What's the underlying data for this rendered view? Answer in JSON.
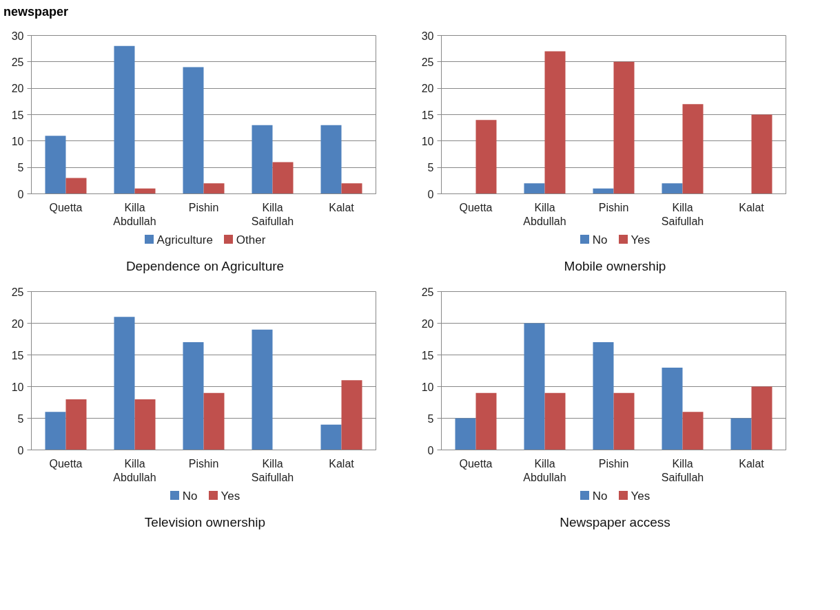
{
  "chart_data": [
    {
      "type": "bar",
      "title": "Dependence on Agriculture",
      "annotations": [
        "newspaper"
      ],
      "categories": [
        "Quetta",
        "Killa Abdullah",
        "Pishin",
        "Killa Saifullah",
        "Kalat"
      ],
      "series": [
        {
          "name": "Agriculture",
          "color": "#4f81bd",
          "values": [
            11,
            28,
            24,
            13,
            13
          ]
        },
        {
          "name": "Other",
          "color": "#c0504d",
          "values": [
            3,
            1,
            2,
            6,
            2
          ]
        }
      ],
      "ylim": [
        0,
        30
      ],
      "yticks": [
        0,
        5,
        10,
        15,
        20,
        25,
        30
      ],
      "grid": "y",
      "legend": "bottom"
    },
    {
      "type": "bar",
      "title": "Mobile ownership",
      "categories": [
        "Quetta",
        "Killa Abdullah",
        "Pishin",
        "Killa Saifullah",
        "Kalat"
      ],
      "series": [
        {
          "name": "No",
          "color": "#4f81bd",
          "values": [
            0,
            2,
            1,
            2,
            0
          ]
        },
        {
          "name": "Yes",
          "color": "#c0504d",
          "values": [
            14,
            27,
            25,
            17,
            15
          ]
        }
      ],
      "ylim": [
        0,
        30
      ],
      "yticks": [
        0,
        5,
        10,
        15,
        20,
        25,
        30
      ],
      "grid": "y",
      "legend": "bottom"
    },
    {
      "type": "bar",
      "title": "Television ownership",
      "categories": [
        "Quetta",
        "Killa Abdullah",
        "Pishin",
        "Killa Saifullah",
        "Kalat"
      ],
      "series": [
        {
          "name": "No",
          "color": "#4f81bd",
          "values": [
            6,
            21,
            17,
            19,
            4
          ]
        },
        {
          "name": "Yes",
          "color": "#c0504d",
          "values": [
            8,
            8,
            9,
            0,
            11
          ]
        }
      ],
      "ylim": [
        0,
        25
      ],
      "yticks": [
        0,
        5,
        10,
        15,
        20,
        25
      ],
      "grid": "y",
      "legend": "bottom"
    },
    {
      "type": "bar",
      "title": "Newspaper access",
      "categories": [
        "Quetta",
        "Killa Abdullah",
        "Pishin",
        "Killa Saifullah",
        "Kalat"
      ],
      "series": [
        {
          "name": "No",
          "color": "#4f81bd",
          "values": [
            5,
            20,
            17,
            13,
            5
          ]
        },
        {
          "name": "Yes",
          "color": "#c0504d",
          "values": [
            9,
            9,
            9,
            6,
            10
          ]
        }
      ],
      "ylim": [
        0,
        25
      ],
      "yticks": [
        0,
        5,
        10,
        15,
        20,
        25
      ],
      "grid": "y",
      "legend": "bottom"
    }
  ]
}
